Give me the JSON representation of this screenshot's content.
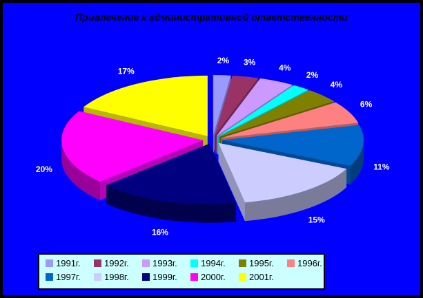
{
  "window": {
    "background_color": "#0000FF",
    "border_color": "#000000"
  },
  "chart_data": {
    "type": "pie",
    "three_d": true,
    "exploded": true,
    "title": "Привлечение к административной ответственности",
    "title_color": "#000000",
    "categories": [
      "1991г.",
      "1992г.",
      "1993г.",
      "1994г.",
      "1995г.",
      "1996г.",
      "1997г.",
      "1998г.",
      "1999г.",
      "2000г.",
      "2001г."
    ],
    "values": [
      2,
      3,
      4,
      2,
      4,
      6,
      11,
      15,
      16,
      20,
      17
    ],
    "unit": "%",
    "labels": [
      "2%",
      "3%",
      "4%",
      "2%",
      "4%",
      "6%",
      "11%",
      "15%",
      "16%",
      "20%",
      "17%"
    ],
    "label_color": "#FFFFFF",
    "colors": [
      "#9999FF",
      "#993366",
      "#CC99FF",
      "#00FFFF",
      "#808000",
      "#FF8080",
      "#0066CC",
      "#CCCCFF",
      "#000080",
      "#FF00FF",
      "#FFFF00"
    ],
    "start_angle_deg": 0,
    "direction": "clockwise",
    "legend": {
      "position": "bottom",
      "background": "#CCFFFF",
      "border_color": "#000000",
      "rows": 2
    }
  }
}
